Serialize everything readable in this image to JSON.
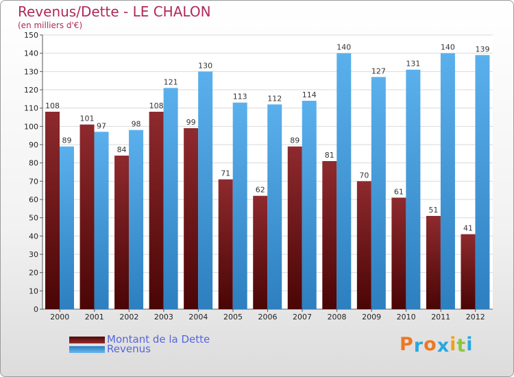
{
  "chart_data": {
    "type": "bar",
    "title": "Revenus/Dette - LE CHALON",
    "subtitle": "(en milliers d'€)",
    "categories": [
      "2000",
      "2001",
      "2002",
      "2003",
      "2004",
      "2005",
      "2006",
      "2007",
      "2008",
      "2009",
      "2010",
      "2011",
      "2012"
    ],
    "series": [
      {
        "name": "Montant de la Dette",
        "color": "#7a1a1a",
        "values": [
          108,
          101,
          84,
          108,
          99,
          71,
          62,
          89,
          81,
          70,
          61,
          51,
          41
        ]
      },
      {
        "name": "Revenus",
        "color": "#4da6e8",
        "values": [
          89,
          97,
          98,
          121,
          130,
          113,
          112,
          114,
          140,
          127,
          131,
          140,
          139
        ]
      }
    ],
    "ylim": [
      0,
      150
    ],
    "ytick_step": 10,
    "grid": true,
    "legend": "bottom-left"
  },
  "logo": {
    "text": "Proxiti",
    "colors": [
      "#ee7722",
      "#2aa7df",
      "#ee7722",
      "#2aa7df",
      "#f0a020",
      "#8cc63f",
      "#2aa7df"
    ]
  },
  "title": "Revenus/Dette - LE CHALON",
  "subtitle": "(en milliers d'€)",
  "legend": {
    "dette": "Montant de la Dette",
    "revenus": "Revenus"
  }
}
